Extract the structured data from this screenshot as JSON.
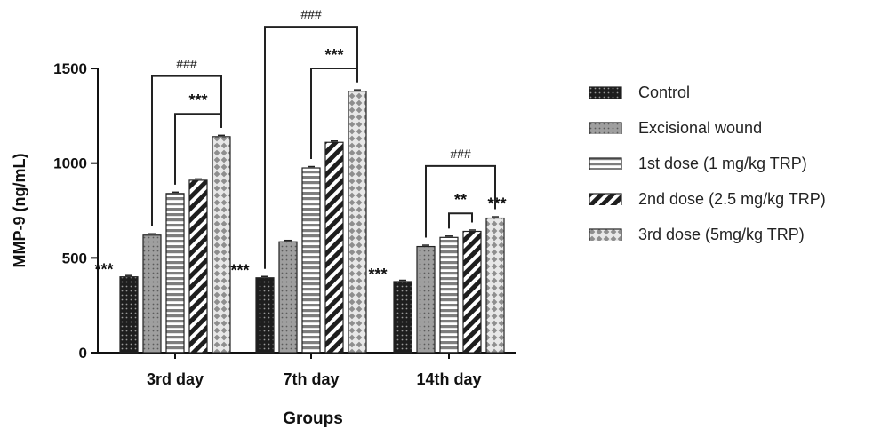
{
  "chart_data": {
    "type": "bar",
    "xlabel": "Groups",
    "ylabel": "MMP-9 (ng/mL)",
    "ylim": [
      0,
      1500
    ],
    "yticks": [
      "0",
      "500",
      "1000",
      "1500"
    ],
    "grid": false,
    "legend_position": "right",
    "categories": [
      "3rd day",
      "7th day",
      "14th day"
    ],
    "series": [
      {
        "name": "Control",
        "values": [
          400,
          395,
          375
        ],
        "pattern": "dots-dark",
        "color": "#222222"
      },
      {
        "name": "Excisional wound",
        "values": [
          620,
          585,
          560
        ],
        "pattern": "dots-light",
        "color": "#9a9a9a"
      },
      {
        "name": "1st dose (1 mg/kg TRP)",
        "values": [
          840,
          975,
          608
        ],
        "pattern": "horizontal-lines",
        "color": "#8a8a8a"
      },
      {
        "name": "2nd dose (2.5 mg/kg TRP)",
        "values": [
          910,
          1110,
          640
        ],
        "pattern": "diagonal-stripes",
        "color": "#222222"
      },
      {
        "name": "3rd dose (5mg/kg TRP)",
        "values": [
          1140,
          1380,
          710
        ],
        "pattern": "diamonds",
        "color": "#aaaaaa"
      }
    ],
    "annotations": [
      {
        "text": "***",
        "category": 0,
        "series": 0,
        "kind": "left-of-bar"
      },
      {
        "text": "***",
        "category": 1,
        "series": 0,
        "kind": "left-of-bar"
      },
      {
        "text": "***",
        "category": 2,
        "series": 0,
        "kind": "left-of-bar"
      },
      {
        "text": "***",
        "category": 2,
        "series": 4,
        "kind": "above-bar"
      },
      {
        "text": "***",
        "category": 0,
        "from_series": 2,
        "to_series": 4,
        "kind": "bracket",
        "level": 1260
      },
      {
        "text": "###",
        "category": 0,
        "from_series": 1,
        "to_series": 4,
        "kind": "bracket",
        "level": 1460
      },
      {
        "text": "***",
        "category": 1,
        "from_series": 2,
        "to_series": 4,
        "kind": "bracket",
        "level": 1500
      },
      {
        "text": "###",
        "category": 1,
        "from_series": 0,
        "to_series": 4,
        "kind": "bracket",
        "level": 1720
      },
      {
        "text": "**",
        "category": 2,
        "from_series": 2,
        "to_series": 3,
        "kind": "bracket",
        "level": 735
      },
      {
        "text": "###",
        "category": 2,
        "from_series": 1,
        "to_series": 4,
        "kind": "bracket",
        "level": 985
      }
    ]
  }
}
